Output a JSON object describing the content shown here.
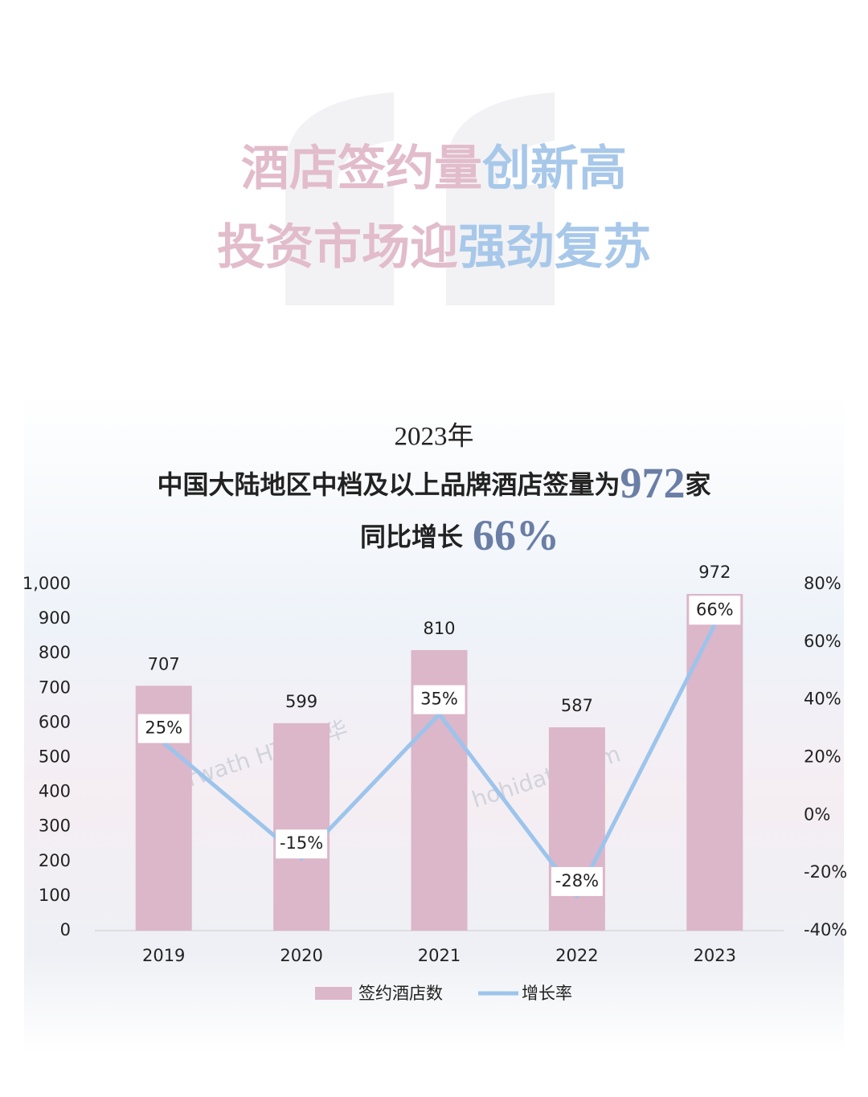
{
  "header": {
    "line1": {
      "plain": "酒店签约量",
      "accent": "创新高"
    },
    "line2": {
      "plain": "投资市场迎",
      "accent": "强劲复苏"
    }
  },
  "summary": {
    "year": "2023年",
    "sentence": "中国大陆地区中档及以上品牌酒店签量为",
    "count": "972",
    "unit": "家",
    "growth_text": "同比增长",
    "growth": "66%"
  },
  "watermarks": [
    "Horwath HTL 浩华",
    "hohidata.com"
  ],
  "chart_data": {
    "type": "combo",
    "categories": [
      "2019",
      "2020",
      "2021",
      "2022",
      "2023"
    ],
    "series": [
      {
        "name": "签约酒店数",
        "type": "bar",
        "color": "#dcb6c9",
        "values": [
          707,
          599,
          810,
          587,
          972
        ]
      },
      {
        "name": "增长率",
        "type": "line",
        "axis": "y2",
        "color": "#9cc4ec",
        "values": [
          25,
          -15,
          35,
          -28,
          66
        ],
        "value_labels": [
          "25%",
          "-15%",
          "35%",
          "-28%",
          "66%"
        ]
      }
    ],
    "ylim": [
      0,
      1000
    ],
    "yticks": [
      0,
      100,
      200,
      300,
      400,
      500,
      600,
      700,
      800,
      900,
      {
        "value": 1000,
        "label": "1,000"
      }
    ],
    "y2lim": [
      -40,
      80
    ],
    "y2ticks": [
      {
        "value": -40,
        "label": "-40%"
      },
      {
        "value": -20,
        "label": "-20%"
      },
      {
        "value": 0,
        "label": "0%"
      },
      {
        "value": 20,
        "label": "20%"
      },
      {
        "value": 40,
        "label": "40%"
      },
      {
        "value": 60,
        "label": "60%"
      },
      {
        "value": 80,
        "label": "80%"
      }
    ],
    "legend": "bottom"
  }
}
